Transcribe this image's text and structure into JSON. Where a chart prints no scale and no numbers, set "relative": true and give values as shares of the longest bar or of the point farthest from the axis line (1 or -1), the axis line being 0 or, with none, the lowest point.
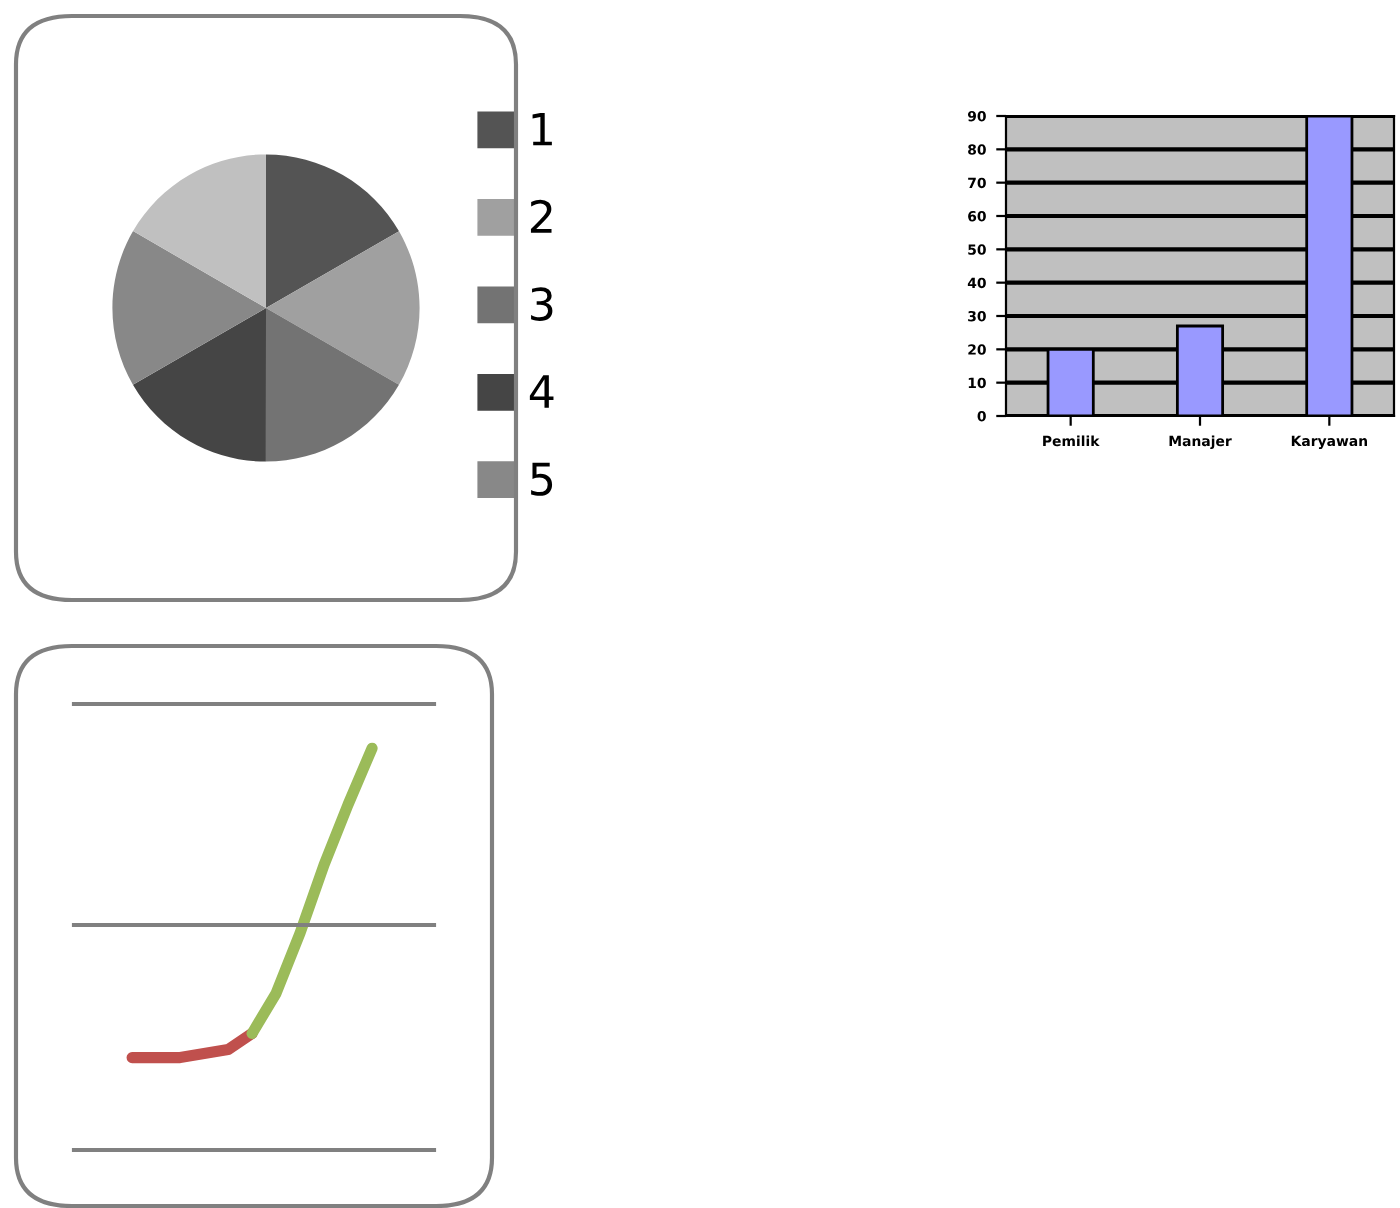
{
  "chart_data": [
    {
      "type": "pie",
      "categories": [
        "1",
        "2",
        "3",
        "4",
        "5",
        null
      ],
      "values": [
        16.67,
        16.67,
        16.67,
        16.67,
        16.67,
        16.65
      ],
      "colors": [
        "#545454",
        "#a0a0a0",
        "#737373",
        "#454545",
        "#888888",
        "#c0c0c0"
      ],
      "legend": "right"
    },
    {
      "type": "bar",
      "categories": [
        "Pemilik",
        "Manajer",
        "Karyawan"
      ],
      "values": [
        20,
        27,
        90
      ],
      "color": "#9999ff",
      "ylim": [
        0,
        90
      ],
      "yticks": [
        0,
        10,
        20,
        30,
        40,
        50,
        60,
        70,
        80,
        90
      ],
      "grid": "y"
    },
    {
      "type": "line",
      "relative": true,
      "categories": [
        null,
        null,
        null,
        null,
        null,
        null,
        null,
        null,
        null,
        null,
        null
      ],
      "ref_lines": [
        {
          "axis": "y",
          "value": 0.56,
          "color": "#808080"
        },
        {
          "axis": "y",
          "value": 1.11,
          "color": "#808080"
        }
      ],
      "series": [
        {
          "color": "#c0504d",
          "values": [
            0.23,
            0.23,
            0.23,
            0.24,
            0.25,
            0.29,
            null,
            null,
            null,
            null,
            null
          ]
        },
        {
          "color": "#9bbb59",
          "values": [
            null,
            null,
            null,
            null,
            null,
            0.29,
            0.39,
            0.54,
            0.71,
            0.86,
            1
          ]
        }
      ]
    }
  ]
}
